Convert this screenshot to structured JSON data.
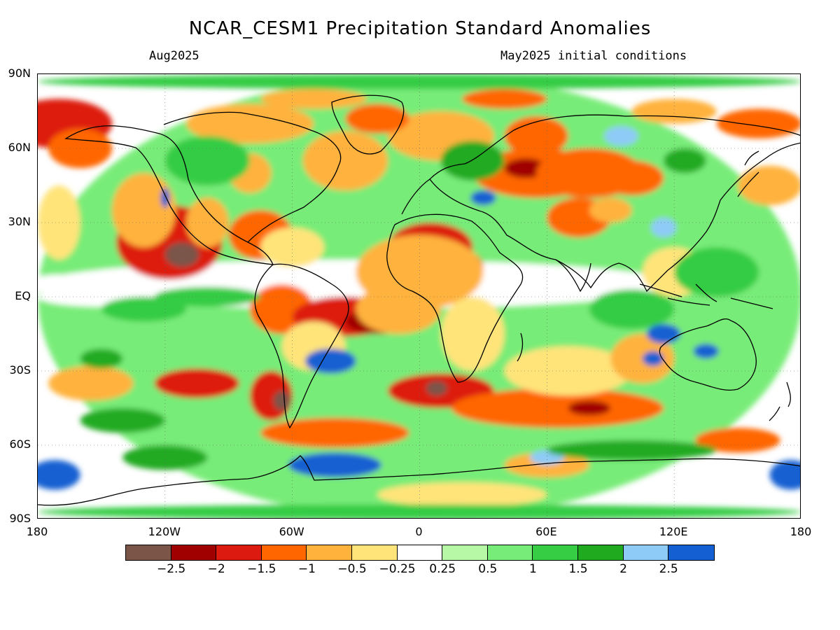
{
  "header": {
    "title": "NCAR_CESM1 Precipitation Standard Anomalies",
    "valid_month": "Aug2025",
    "initial_conditions": "May2025 initial conditions"
  },
  "axes": {
    "lat_labels": [
      {
        "text": "90N",
        "lat": 90
      },
      {
        "text": "60N",
        "lat": 60
      },
      {
        "text": "30N",
        "lat": 30
      },
      {
        "text": "EQ",
        "lat": 0
      },
      {
        "text": "30S",
        "lat": -30
      },
      {
        "text": "60S",
        "lat": -60
      },
      {
        "text": "90S",
        "lat": -90
      }
    ],
    "lon_labels": [
      {
        "text": "180",
        "lon": -180
      },
      {
        "text": "120W",
        "lon": -120
      },
      {
        "text": "60W",
        "lon": -60
      },
      {
        "text": "0",
        "lon": 0
      },
      {
        "text": "60E",
        "lon": 60
      },
      {
        "text": "120E",
        "lon": 120
      },
      {
        "text": "180",
        "lon": 180
      }
    ]
  },
  "legend": {
    "colors": [
      "#7a5548",
      "#a00000",
      "#dd1a10",
      "#ff6600",
      "#ffb23c",
      "#ffe47a",
      "#ffffff",
      "#b6f8a6",
      "#78ec78",
      "#36cc44",
      "#20aa20",
      "#8ecbf6",
      "#1460d2"
    ],
    "labels": [
      "−2.5",
      "−2",
      "−1.5",
      "−1",
      "−0.5",
      "−0.25",
      "0.25",
      "0.5",
      "1",
      "1.5",
      "2",
      "2.5"
    ]
  },
  "map_data": {
    "type": "heatmap",
    "variable": "Precipitation Standard Anomalies",
    "xlim": [
      -180,
      180
    ],
    "ylim": [
      -90,
      90
    ],
    "regions": [
      {
        "lon": 0,
        "lat": 0,
        "rx": 180,
        "ry": 90,
        "value": 0.6
      },
      {
        "lon": -30,
        "lat": 5,
        "rx": 150,
        "ry": 10,
        "value": 0.1
      },
      {
        "lon": -170,
        "lat": 70,
        "rx": 25,
        "ry": 10,
        "value": -1.6
      },
      {
        "lon": -160,
        "lat": 60,
        "rx": 15,
        "ry": 8,
        "value": -1.2
      },
      {
        "lon": -118,
        "lat": 22,
        "rx": 25,
        "ry": 15,
        "value": -1.7
      },
      {
        "lon": -112,
        "lat": 17,
        "rx": 8,
        "ry": 5,
        "value": -2.6
      },
      {
        "lon": -130,
        "lat": 35,
        "rx": 15,
        "ry": 15,
        "value": -0.8
      },
      {
        "lon": -75,
        "lat": 25,
        "rx": 15,
        "ry": 10,
        "value": -1.3
      },
      {
        "lon": -100,
        "lat": 30,
        "rx": 10,
        "ry": 10,
        "value": -0.6
      },
      {
        "lon": -80,
        "lat": 50,
        "rx": 10,
        "ry": 8,
        "value": -1.0
      },
      {
        "lon": -60,
        "lat": 20,
        "rx": 15,
        "ry": 8,
        "value": -0.5
      },
      {
        "lon": -35,
        "lat": 55,
        "rx": 20,
        "ry": 12,
        "value": -0.7
      },
      {
        "lon": -80,
        "lat": 70,
        "rx": 30,
        "ry": 8,
        "value": -0.6
      },
      {
        "lon": -65,
        "lat": -5,
        "rx": 15,
        "ry": 10,
        "value": -1.2
      },
      {
        "lon": -35,
        "lat": -8,
        "rx": 25,
        "ry": 8,
        "value": -1.8
      },
      {
        "lon": -20,
        "lat": -10,
        "rx": 15,
        "ry": 5,
        "value": -2.1
      },
      {
        "lon": -50,
        "lat": -20,
        "rx": 15,
        "ry": 10,
        "value": -0.4
      },
      {
        "lon": -40,
        "lat": -55,
        "rx": 35,
        "ry": 6,
        "value": -1.4
      },
      {
        "lon": -70,
        "lat": -40,
        "rx": 10,
        "ry": 10,
        "value": -1.7
      },
      {
        "lon": -65,
        "lat": -42,
        "rx": 4,
        "ry": 4,
        "value": -2.6
      },
      {
        "lon": -105,
        "lat": -35,
        "rx": 20,
        "ry": 6,
        "value": -1.6
      },
      {
        "lon": 5,
        "lat": 20,
        "rx": 20,
        "ry": 10,
        "value": -1.6
      },
      {
        "lon": 0,
        "lat": 17,
        "rx": 10,
        "ry": 5,
        "value": -2.3
      },
      {
        "lon": 15,
        "lat": 12,
        "rx": 15,
        "ry": 8,
        "value": -1.8
      },
      {
        "lon": 0,
        "lat": 10,
        "rx": 30,
        "ry": 15,
        "value": -0.6
      },
      {
        "lon": -10,
        "lat": -5,
        "rx": 20,
        "ry": 10,
        "value": -0.6
      },
      {
        "lon": 25,
        "lat": -15,
        "rx": 15,
        "ry": 15,
        "value": -0.5
      },
      {
        "lon": 10,
        "lat": -38,
        "rx": 25,
        "ry": 7,
        "value": -1.6
      },
      {
        "lon": 8,
        "lat": -37,
        "rx": 5,
        "ry": 3,
        "value": -2.7
      },
      {
        "lon": 65,
        "lat": -45,
        "rx": 50,
        "ry": 8,
        "value": -1.3
      },
      {
        "lon": 80,
        "lat": -45,
        "rx": 10,
        "ry": 3,
        "value": -2.3
      },
      {
        "lon": 70,
        "lat": -30,
        "rx": 30,
        "ry": 10,
        "value": -0.5
      },
      {
        "lon": 10,
        "lat": 65,
        "rx": 25,
        "ry": 10,
        "value": -1.0
      },
      {
        "lon": -20,
        "lat": 72,
        "rx": 15,
        "ry": 6,
        "value": -1.2
      },
      {
        "lon": 55,
        "lat": 50,
        "rx": 30,
        "ry": 10,
        "value": -1.5
      },
      {
        "lon": 50,
        "lat": 52,
        "rx": 10,
        "ry": 4,
        "value": -2.4
      },
      {
        "lon": 80,
        "lat": 50,
        "rx": 25,
        "ry": 10,
        "value": -1.4
      },
      {
        "lon": 100,
        "lat": 48,
        "rx": 15,
        "ry": 7,
        "value": -1.3
      },
      {
        "lon": 55,
        "lat": 65,
        "rx": 15,
        "ry": 8,
        "value": -1.2
      },
      {
        "lon": 75,
        "lat": 32,
        "rx": 15,
        "ry": 8,
        "value": -1.1
      },
      {
        "lon": 90,
        "lat": 35,
        "rx": 10,
        "ry": 5,
        "value": -0.7
      },
      {
        "lon": 160,
        "lat": 70,
        "rx": 20,
        "ry": 6,
        "value": -1.3
      },
      {
        "lon": 165,
        "lat": 45,
        "rx": 15,
        "ry": 8,
        "value": -1.0
      },
      {
        "lon": 120,
        "lat": 10,
        "rx": 15,
        "ry": 10,
        "value": -0.5
      },
      {
        "lon": 105,
        "lat": -25,
        "rx": 15,
        "ry": 10,
        "value": -0.6
      },
      {
        "lon": 150,
        "lat": -58,
        "rx": 20,
        "ry": 5,
        "value": -1.5
      },
      {
        "lon": 60,
        "lat": -68,
        "rx": 20,
        "ry": 5,
        "value": -0.6
      },
      {
        "lon": 20,
        "lat": -80,
        "rx": 40,
        "ry": 5,
        "value": -0.4
      },
      {
        "lon": -155,
        "lat": -35,
        "rx": 20,
        "ry": 7,
        "value": -0.6
      },
      {
        "lon": -170,
        "lat": 30,
        "rx": 10,
        "ry": 15,
        "value": -0.4
      },
      {
        "lon": -170,
        "lat": 5,
        "rx": 15,
        "ry": 4,
        "value": 0.0
      },
      {
        "lon": -150,
        "lat": 0,
        "rx": 30,
        "ry": 4,
        "value": 0.0
      },
      {
        "lon": -42,
        "lat": -26,
        "rx": 12,
        "ry": 5,
        "value": 2.6
      },
      {
        "lon": -40,
        "lat": -68,
        "rx": 22,
        "ry": 5,
        "value": 2.6
      },
      {
        "lon": -172,
        "lat": -72,
        "rx": 12,
        "ry": 6,
        "value": 2.6
      },
      {
        "lon": 175,
        "lat": -72,
        "rx": 10,
        "ry": 6,
        "value": 2.6
      },
      {
        "lon": 60,
        "lat": -65,
        "rx": 8,
        "ry": 3,
        "value": 2.2
      },
      {
        "lon": 110,
        "lat": -25,
        "rx": 5,
        "ry": 3,
        "value": 2.5
      },
      {
        "lon": 135,
        "lat": -22,
        "rx": 6,
        "ry": 3,
        "value": 2.6
      },
      {
        "lon": 115,
        "lat": -15,
        "rx": 8,
        "ry": 4,
        "value": 2.5
      },
      {
        "lon": -120,
        "lat": 40,
        "rx": 2,
        "ry": 4,
        "value": 2.5
      },
      {
        "lon": 30,
        "lat": 40,
        "rx": 6,
        "ry": 3,
        "value": 2.6
      },
      {
        "lon": 95,
        "lat": 65,
        "rx": 8,
        "ry": 4,
        "value": 2.4
      },
      {
        "lon": 115,
        "lat": 28,
        "rx": 6,
        "ry": 4,
        "value": 2.1
      },
      {
        "lon": 125,
        "lat": 55,
        "rx": 10,
        "ry": 5,
        "value": 1.7
      },
      {
        "lon": -150,
        "lat": -25,
        "rx": 10,
        "ry": 4,
        "value": 1.7
      },
      {
        "lon": -130,
        "lat": -5,
        "rx": 20,
        "ry": 5,
        "value": 1.2
      },
      {
        "lon": -100,
        "lat": 0,
        "rx": 25,
        "ry": 4,
        "value": 1.1
      },
      {
        "lon": 140,
        "lat": 10,
        "rx": 20,
        "ry": 10,
        "value": 1.4
      },
      {
        "lon": 100,
        "lat": -5,
        "rx": 20,
        "ry": 8,
        "value": 1.3
      },
      {
        "lon": 25,
        "lat": 55,
        "rx": 15,
        "ry": 8,
        "value": 1.5
      },
      {
        "lon": -100,
        "lat": 55,
        "rx": 20,
        "ry": 10,
        "value": 1.3
      },
      {
        "lon": -140,
        "lat": -50,
        "rx": 20,
        "ry": 5,
        "value": 1.5
      },
      {
        "lon": -120,
        "lat": -65,
        "rx": 20,
        "ry": 5,
        "value": 1.6
      },
      {
        "lon": 100,
        "lat": -62,
        "rx": 40,
        "ry": 4,
        "value": 1.5
      },
      {
        "lon": 0,
        "lat": -87,
        "rx": 180,
        "ry": 3,
        "value": 1.2
      },
      {
        "lon": 0,
        "lat": 87,
        "rx": 180,
        "ry": 3,
        "value": 1.2
      },
      {
        "lon": 40,
        "lat": 80,
        "rx": 20,
        "ry": 4,
        "value": -1.2
      },
      {
        "lon": -50,
        "lat": 80,
        "rx": 25,
        "ry": 4,
        "value": -1.0
      },
      {
        "lon": 120,
        "lat": 75,
        "rx": 20,
        "ry": 5,
        "value": -0.6
      }
    ]
  }
}
